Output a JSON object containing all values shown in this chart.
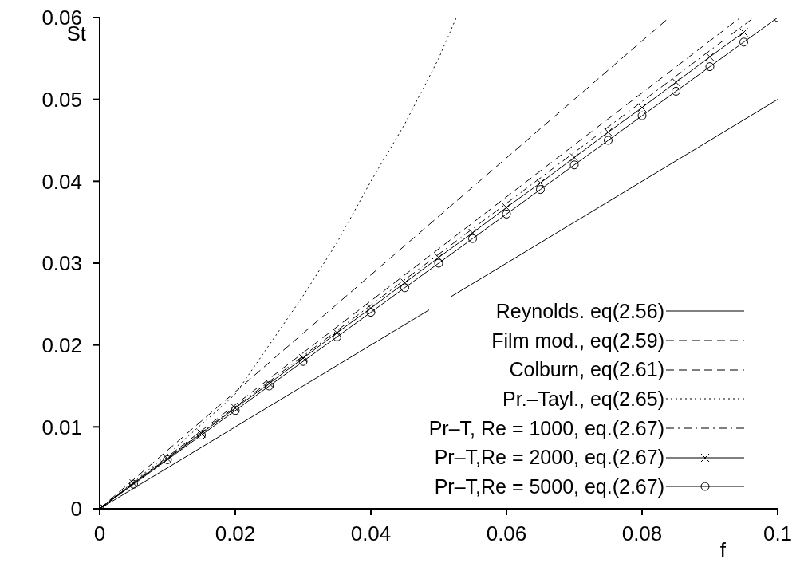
{
  "chart_data": {
    "type": "line",
    "xlabel": "f",
    "ylabel": "St",
    "xlim": [
      0,
      0.1
    ],
    "xticks": [
      0,
      0.02,
      0.04,
      0.06,
      0.08,
      0.1
    ],
    "ylim": [
      0,
      0.06
    ],
    "yticks": [
      0,
      0.01,
      0.02,
      0.03,
      0.04,
      0.05,
      0.06
    ],
    "grid": false,
    "legend": "bottom right",
    "series": [
      {
        "name": "Reynolds. eq(2.56)",
        "color": "#000000",
        "line_style": "solid",
        "x": [
          0,
          0.1
        ],
        "values": [
          0,
          0.05
        ]
      },
      {
        "name": "Film mod., eq(2.59)",
        "color": "#000000",
        "line_style": "dashed",
        "x": [
          0,
          0.084
        ],
        "values": [
          0,
          0.06
        ]
      },
      {
        "name": "Colburn, eq(2.61)",
        "color": "#000000",
        "line_style": "dashed",
        "x": [
          0,
          0.0945
        ],
        "values": [
          0,
          0.06
        ]
      },
      {
        "name": "Pr.–Tayl., eq(2.65)",
        "color": "#000000",
        "line_style": "dotted",
        "x": [
          0,
          0.01,
          0.02,
          0.03,
          0.035,
          0.04,
          0.045,
          0.05,
          0.0526
        ],
        "values": [
          0,
          0.0066,
          0.014,
          0.026,
          0.0325,
          0.04,
          0.047,
          0.055,
          0.06
        ]
      },
      {
        "name": "Pr–T, Re = 1000, eq.(2.67)",
        "color": "#000000",
        "line_style": "dashdot",
        "x": [
          0,
          0.0965
        ],
        "values": [
          0,
          0.06
        ]
      },
      {
        "name": "Pr–T,Re = 2000, eq.(2.67)",
        "color": "#000000",
        "line_style": "solid",
        "marker": "cross",
        "x": [
          0,
          0.005,
          0.01,
          0.015,
          0.02,
          0.025,
          0.03,
          0.035,
          0.04,
          0.045,
          0.05,
          0.055,
          0.06,
          0.065,
          0.07,
          0.075,
          0.08,
          0.085,
          0.09,
          0.095
        ],
        "values": [
          0,
          0.0031,
          0.0061,
          0.0092,
          0.0123,
          0.0153,
          0.0184,
          0.0215,
          0.0245,
          0.0276,
          0.0307,
          0.0337,
          0.0368,
          0.0398,
          0.0429,
          0.046,
          0.049,
          0.0521,
          0.0552,
          0.0582
        ]
      },
      {
        "name": "Pr–T,Re = 5000, eq.(2.67)",
        "color": "#000000",
        "line_style": "solid",
        "marker": "circle",
        "x": [
          0,
          0.005,
          0.01,
          0.015,
          0.02,
          0.025,
          0.03,
          0.035,
          0.04,
          0.045,
          0.05,
          0.055,
          0.06,
          0.065,
          0.07,
          0.075,
          0.08,
          0.085,
          0.09,
          0.095,
          0.1
        ],
        "values": [
          0,
          0.003,
          0.006,
          0.009,
          0.012,
          0.015,
          0.018,
          0.021,
          0.024,
          0.027,
          0.03,
          0.033,
          0.036,
          0.039,
          0.042,
          0.045,
          0.048,
          0.051,
          0.054,
          0.057,
          0.06
        ]
      }
    ]
  }
}
